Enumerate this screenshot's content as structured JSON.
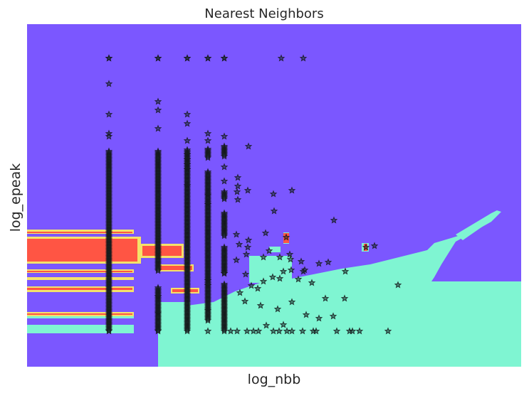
{
  "chart_data": {
    "type": "scatter",
    "title": "Nearest Neighbors",
    "xlabel": "log_nbb",
    "ylabel": "log_epeak",
    "xticks": [],
    "yticks": [],
    "grid": false,
    "marker": "star",
    "colors": {
      "background_class": "#7b57ff",
      "region_class": "#7ff5d2",
      "bands_class": "#ff5544",
      "point_fill": "#1a2e2a",
      "point_stroke": "#15181a"
    },
    "x_columns": [
      [
        153,
        [
          82,
          118,
          161,
          188,
          192,
          213,
          217,
          221,
          225,
          229,
          241,
          245,
          249,
          253,
          257,
          261,
          265,
          269,
          273,
          277,
          281,
          285,
          289,
          293,
          297,
          301,
          305,
          309,
          313,
          317,
          321,
          325,
          329,
          333,
          337,
          341,
          345,
          349,
          353,
          357,
          361,
          365,
          369,
          373,
          377,
          381,
          385,
          389,
          393,
          397,
          401,
          405,
          409,
          413,
          417,
          421,
          425,
          429,
          433,
          437,
          441,
          445,
          449,
          453,
          457,
          461,
          466
        ]
      ],
      [
        222,
        [
          82,
          143,
          155,
          181,
          213,
          225,
          229,
          241,
          245,
          249,
          253,
          257,
          261,
          265,
          269,
          277,
          281,
          289,
          293,
          301,
          305,
          309,
          313,
          317,
          321,
          325,
          329,
          333,
          337,
          341,
          345,
          349,
          353,
          357,
          369,
          381,
          405,
          418,
          430,
          441,
          449,
          457,
          466
        ]
      ],
      [
        263,
        [
          82,
          161,
          174,
          198,
          211,
          218,
          225,
          232,
          239,
          245,
          251,
          257,
          262,
          268,
          274,
          280,
          286,
          292,
          298,
          304,
          310,
          316,
          322,
          328,
          334,
          340,
          346,
          352,
          358,
          364,
          370,
          376,
          382,
          388,
          394,
          400,
          406,
          412,
          418,
          424,
          430,
          436,
          442,
          448,
          456,
          466
        ]
      ],
      [
        292,
        [
          82,
          188,
          198,
          210,
          222,
          242,
          250,
          258,
          266,
          275,
          281,
          288,
          294,
          300,
          306,
          318,
          324,
          336,
          342,
          350,
          360,
          368,
          382,
          395,
          402,
          410,
          418,
          424,
          437,
          443,
          451,
          466
        ]
      ],
      [
        315,
        [
          82,
          192,
          206,
          220,
          235,
          255,
          270,
          280,
          300,
          312,
          322,
          332,
          348,
          360,
          372,
          385,
          400,
          410,
          420,
          432,
          440,
          450,
          458,
          466
        ]
      ]
    ],
    "scattered_points": [
      [
        349,
        206
      ],
      [
        348,
        268
      ],
      [
        334,
        250
      ],
      [
        334,
        262
      ],
      [
        333,
        270
      ],
      [
        334,
        281
      ],
      [
        384,
        273
      ],
      [
        410,
        268
      ],
      [
        385,
        297
      ],
      [
        469,
        310
      ],
      [
        373,
        328
      ],
      [
        349,
        338
      ],
      [
        332,
        330
      ],
      [
        336,
        344
      ],
      [
        348,
        348
      ],
      [
        346,
        358
      ],
      [
        332,
        366
      ],
      [
        370,
        362
      ],
      [
        378,
        353
      ],
      [
        393,
        362
      ],
      [
        408,
        365
      ],
      [
        426,
        382
      ],
      [
        448,
        371
      ],
      [
        461,
        369
      ],
      [
        485,
        382
      ],
      [
        398,
        382
      ],
      [
        409,
        380
      ],
      [
        419,
        393
      ],
      [
        438,
        398
      ],
      [
        457,
        420
      ],
      [
        393,
        392
      ],
      [
        383,
        390
      ],
      [
        370,
        396
      ],
      [
        353,
        402
      ],
      [
        345,
        386
      ],
      [
        362,
        406
      ],
      [
        337,
        412
      ],
      [
        344,
        424
      ],
      [
        366,
        430
      ],
      [
        390,
        435
      ],
      [
        410,
        425
      ],
      [
        430,
        443
      ],
      [
        448,
        448
      ],
      [
        468,
        445
      ],
      [
        484,
        420
      ],
      [
        374,
        458
      ],
      [
        398,
        457
      ],
      [
        403,
        466
      ],
      [
        392,
        466
      ],
      [
        363,
        466
      ],
      [
        347,
        466
      ],
      [
        333,
        466
      ],
      [
        324,
        466
      ],
      [
        356,
        466
      ],
      [
        384,
        466
      ],
      [
        410,
        466
      ],
      [
        425,
        466
      ],
      [
        440,
        466
      ],
      [
        444,
        466
      ],
      [
        473,
        466
      ],
      [
        491,
        466
      ],
      [
        495,
        466
      ],
      [
        505,
        466
      ],
      [
        545,
        466
      ],
      [
        559,
        401
      ],
      [
        526,
        346
      ],
      [
        514,
        348
      ],
      [
        402,
        334
      ],
      [
        407,
        358
      ],
      [
        423,
        368
      ],
      [
        428,
        380
      ]
    ],
    "top_row": [
      [
        153,
        82
      ],
      [
        222,
        82
      ],
      [
        263,
        82
      ],
      [
        292,
        82
      ],
      [
        315,
        82
      ],
      [
        395,
        82
      ],
      [
        426,
        82
      ]
    ]
  }
}
